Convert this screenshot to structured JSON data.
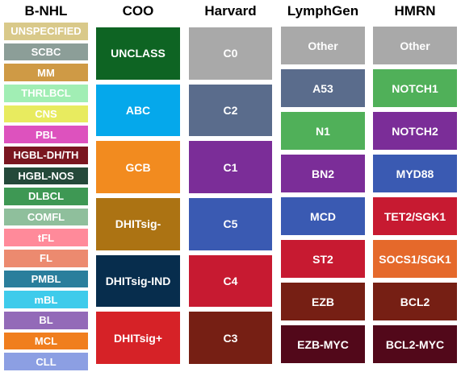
{
  "columns": [
    {
      "title": "B-NHL",
      "items": [
        {
          "label": "UNSPECIFIED",
          "color": "#D9C98A"
        },
        {
          "label": "SCBC",
          "color": "#8C9E98"
        },
        {
          "label": "MM",
          "color": "#CF9A45"
        },
        {
          "label": "THRLBCL",
          "color": "#A1EEB4"
        },
        {
          "label": "CNS",
          "color": "#E8EB5F"
        },
        {
          "label": "PBL",
          "color": "#DD52BE"
        },
        {
          "label": "HGBL-DH/TH",
          "color": "#7A1620"
        },
        {
          "label": "HGBL-NOS",
          "color": "#24493A"
        },
        {
          "label": "DLBCL",
          "color": "#3E9854"
        },
        {
          "label": "COMFL",
          "color": "#8FBF9C"
        },
        {
          "label": "tFL",
          "color": "#FF8A9A"
        },
        {
          "label": "FL",
          "color": "#EC8A6F"
        },
        {
          "label": "PMBL",
          "color": "#2A7E9C"
        },
        {
          "label": "mBL",
          "color": "#3ECBEB"
        },
        {
          "label": "BL",
          "color": "#936AB8"
        },
        {
          "label": "MCL",
          "color": "#F07E1E"
        },
        {
          "label": "CLL",
          "color": "#8C9FE3"
        }
      ]
    },
    {
      "title": "COO",
      "items": [
        {
          "label": "UNCLASS",
          "color": "#0E6423"
        },
        {
          "label": "ABC",
          "color": "#05A8EB"
        },
        {
          "label": "GCB",
          "color": "#F28B1F"
        },
        {
          "label": "DHITsig-",
          "color": "#AC7313"
        },
        {
          "label": "DHITsig-IND",
          "color": "#072D4D"
        },
        {
          "label": "DHITsig+",
          "color": "#D62227"
        }
      ]
    },
    {
      "title": "Harvard",
      "items": [
        {
          "label": "C0",
          "color": "#A9A9A9"
        },
        {
          "label": "C2",
          "color": "#5A6C8C"
        },
        {
          "label": "C1",
          "color": "#7B2D98"
        },
        {
          "label": "C5",
          "color": "#3A5AB2"
        },
        {
          "label": "C4",
          "color": "#C71A31"
        },
        {
          "label": "C3",
          "color": "#761F14"
        }
      ]
    },
    {
      "title": "LymphGen",
      "items": [
        {
          "label": "Other",
          "color": "#A9A9A9"
        },
        {
          "label": "A53",
          "color": "#5A6C8C"
        },
        {
          "label": "N1",
          "color": "#50B059"
        },
        {
          "label": "BN2",
          "color": "#7B2D98"
        },
        {
          "label": "MCD",
          "color": "#3A5AB2"
        },
        {
          "label": "ST2",
          "color": "#C71A31"
        },
        {
          "label": "EZB",
          "color": "#761F14"
        },
        {
          "label": "EZB-MYC",
          "color": "#52081A"
        }
      ]
    },
    {
      "title": "HMRN",
      "items": [
        {
          "label": "Other",
          "color": "#A9A9A9"
        },
        {
          "label": "NOTCH1",
          "color": "#50B059"
        },
        {
          "label": "NOTCH2",
          "color": "#7B2D98"
        },
        {
          "label": "MYD88",
          "color": "#3A5AB2"
        },
        {
          "label": "TET2/SGK1",
          "color": "#C71A31"
        },
        {
          "label": "SOCS1/SGK1",
          "color": "#E5692B"
        },
        {
          "label": "BCL2",
          "color": "#761F14"
        },
        {
          "label": "BCL2-MYC",
          "color": "#52081A"
        }
      ]
    }
  ]
}
